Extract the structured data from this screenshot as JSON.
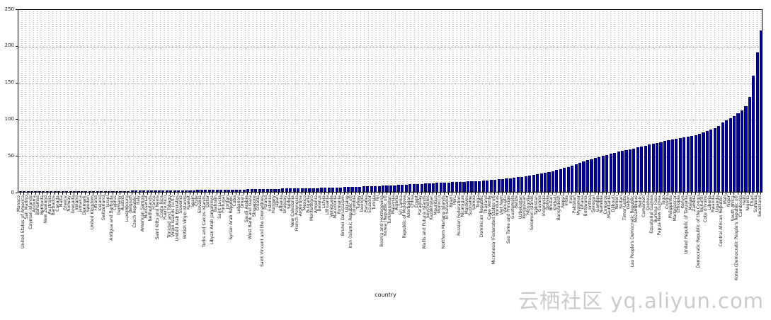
{
  "watermark": {
    "text": "云栖社区 yq.aliyun.com"
  },
  "chart_data": {
    "type": "bar",
    "title": "",
    "xlabel": "country",
    "ylabel": "",
    "ylim": [
      0,
      250
    ],
    "yticks": [
      0,
      50,
      100,
      150,
      200,
      250
    ],
    "grid": true,
    "legend": false,
    "bar_color": "#000099",
    "sort": "ascending",
    "categories": [
      "Monaco",
      "United States of America",
      "San Marino",
      "Cayman Islands",
      "Andorra",
      "Bahamas",
      "Bermuda",
      "New Zealand",
      "Australia",
      "Barbados",
      "Canada",
      "Malta",
      "Greece",
      "Norway",
      "Grenada",
      "Ireland",
      "Jamaica",
      "Denmark",
      "Sweden",
      "United Kingdom",
      "Finland",
      "Iceland",
      "Switzerland",
      "Israel",
      "Antigua and Barbuda",
      "Cyprus",
      "Germany",
      "Austria",
      "Luxembourg",
      "Belgium",
      "Czech Republic",
      "Italy",
      "American Samoa",
      "Montserrat",
      "Netherlands",
      "France",
      "Saint Kitts and Nevis",
      "Costa Rica",
      "Puerto Rico",
      "Trinidad and Tobago",
      "Virgin Islands (U.S.)",
      "United Arab Emirates",
      "Slovenia",
      "British Virgin Islands",
      "Kuwait",
      "Spain",
      "Chile",
      "Slovakia",
      "Turks and Caicos Islands",
      "Qatar",
      "Libyan Arab Jamahiriya",
      "Bahrain",
      "Saint Lucia",
      "Portugal",
      "Jordan",
      "Syrian Arab Republic",
      "Cuba",
      "Lebanon",
      "Oman",
      "Saudi Arabia",
      "West Bank and Gaza",
      "Singapore",
      "Croatia",
      "Saint Vincent and the Grenadines",
      "Poland",
      "Estonia",
      "Hungary",
      "Japan",
      "Albania",
      "Uruguay",
      "Serbia",
      "New Caledonia",
      "French Polynesia",
      "Argentina",
      "Mexico",
      "Bulgaria",
      "Montenegro",
      "Armenia",
      "Belarus",
      "Latvia",
      "Lithuania",
      "Venezuela",
      "Macedonia",
      "Romania",
      "Brunei Darussalam",
      "Ukraine",
      "Iran (Islamic Republic of)",
      "Colombia",
      "Turkey",
      "Georgia",
      "Panama",
      "Ecuador",
      "Tunisia",
      "Fiji",
      "Bosnia and Herzegovina",
      "Korea (Republic of)",
      "Turkmenistan",
      "Malaysia",
      "Algeria",
      "Sri Lanka",
      "Republic of Moldova",
      "Azerbaijan",
      "China",
      "Egypt",
      "Paraguay",
      "Wallis and Futuna Islands",
      "Seychelles",
      "Kazakhstan",
      "Mauritius",
      "Morocco",
      "Northern Mariana Islands",
      "El Salvador",
      "Brazil",
      "Peru",
      "Russian Federation",
      "Nicaragua",
      "Maldives",
      "Suriname",
      "Samoa",
      "Tonga",
      "Dominican Republic",
      "Thailand",
      "Cape Verde",
      "Micronesia (Federated States of)",
      "Honduras",
      "Viet Nam",
      "Vanuatu",
      "Sao Tome and Principe",
      "Guatemala",
      "Belize",
      "Uzbekistan",
      "Kyrgyzstan",
      "Mongolia",
      "Solomon Islands",
      "Tajikistan",
      "Guyana",
      "Indonesia",
      "Bolivia",
      "Bhutan",
      "Kiribati",
      "Bangladesh",
      "Nepal",
      "India",
      "Iraq",
      "Pakistan",
      "Myanmar",
      "Ghana",
      "Botswana",
      "Eritrea",
      "Senegal",
      "Gambia",
      "Namibia",
      "Comoros",
      "Mauritania",
      "Djibouti",
      "Yemen",
      "Sudan",
      "Timor-Leste",
      "Gabon",
      "Lao People's Democratic Republic",
      "Mozambique",
      "Benin",
      "Cameroon",
      "Guinea",
      "Equatorial Guinea",
      "Burkina Faso",
      "Papua New Guinea",
      "Togo",
      "Congo",
      "Philippines",
      "Madagascar",
      "Ethiopia",
      "Kenya",
      "United Republic of Tanzania",
      "Malawi",
      "Zambia",
      "Democratic Republic of the Congo",
      "Burundi",
      "Cote d'Ivoire",
      "Liberia",
      "Rwanda",
      "Uganda",
      "Central African Republic",
      "Mali",
      "Niger",
      "South Africa",
      "Korea (Democratic People's Republic of)",
      "Cambodia",
      "Haiti",
      "Nigeria",
      "Chad",
      "Somalia",
      "Swaziland"
    ],
    "values": [
      0.1,
      0.1,
      0.2,
      0.2,
      0.2,
      0.3,
      0.3,
      0.3,
      0.4,
      0.4,
      0.5,
      0.5,
      0.5,
      0.6,
      0.6,
      0.7,
      0.7,
      0.8,
      0.9,
      1.0,
      1.0,
      1.1,
      1.1,
      1.2,
      1.2,
      1.3,
      1.3,
      1.4,
      1.4,
      1.5,
      1.5,
      1.6,
      1.6,
      1.7,
      1.7,
      1.8,
      1.8,
      1.9,
      1.9,
      2.0,
      2.1,
      2.1,
      2.2,
      2.3,
      2.3,
      2.4,
      2.5,
      2.5,
      2.6,
      2.7,
      2.8,
      2.8,
      2.9,
      3.0,
      3.1,
      3.2,
      3.2,
      3.3,
      3.4,
      3.5,
      3.6,
      3.7,
      3.8,
      3.9,
      4.0,
      4.1,
      4.2,
      4.3,
      4.4,
      4.5,
      4.6,
      4.7,
      4.8,
      4.9,
      5.0,
      5.1,
      5.2,
      5.3,
      5.4,
      5.5,
      5.6,
      5.8,
      6.0,
      6.2,
      6.4,
      6.6,
      6.8,
      7.0,
      7.2,
      7.4,
      7.6,
      7.8,
      8.0,
      8.2,
      8.4,
      8.6,
      8.8,
      9.2,
      9.6,
      10.0,
      10.2,
      10.5,
      10.7,
      11.0,
      11.2,
      11.5,
      11.7,
      12.0,
      12.2,
      12.5,
      12.7,
      13.0,
      13.2,
      13.5,
      13.7,
      14.0,
      14.2,
      14.5,
      14.7,
      15.0,
      15.4,
      15.8,
      16.2,
      16.7,
      17.1,
      17.6,
      18.1,
      18.7,
      19.3,
      20.0,
      20.8,
      21.6,
      22.4,
      23.2,
      24.0,
      25.0,
      26.0,
      27.2,
      28.5,
      30.0,
      31.5,
      33.0,
      34.5,
      36.0,
      38.0,
      40.0,
      42.0,
      44.0,
      45.0,
      46.5,
      48.0,
      49.5,
      51.0,
      52.5,
      54.0,
      55.0,
      56.0,
      57.0,
      58.0,
      59.5,
      61.0,
      62.0,
      63.5,
      65.0,
      66.0,
      67.0,
      68.0,
      70.0,
      71.0,
      72.0,
      73.0,
      74.0,
      75.0,
      76.0,
      77.0,
      78.0,
      80.0,
      82.0,
      84.0,
      86.0,
      88.0,
      90.0,
      95.0,
      98.0,
      101.0,
      104.0,
      108.0,
      112.0,
      118.0,
      130.0,
      160.0,
      192.0,
      222.0
    ]
  }
}
